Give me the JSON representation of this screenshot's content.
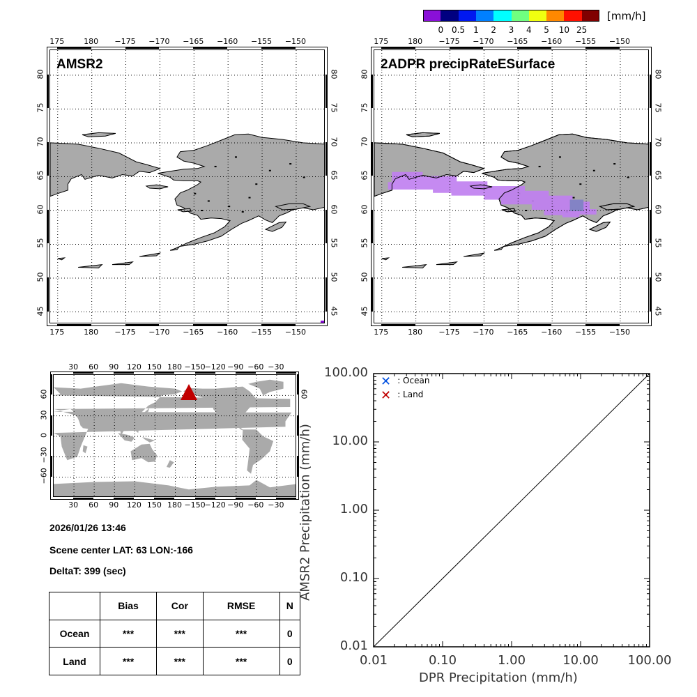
{
  "colorbar": {
    "unit": "[mm/h]",
    "colors": [
      "#8a10d8",
      "#000080",
      "#0018f0",
      "#0080ff",
      "#00ffff",
      "#70ff80",
      "#f0ff10",
      "#ff8800",
      "#ff1000",
      "#800000"
    ],
    "labels": [
      "0",
      "0.5",
      "1",
      "2",
      "3",
      "4",
      "5",
      "10",
      "25"
    ]
  },
  "map_panels": [
    {
      "title": "AMSR2",
      "lon_ticks": [
        "175",
        "180",
        "−175",
        "−170",
        "−165",
        "−160",
        "−155",
        "−150"
      ],
      "lat_ticks": [
        "80",
        "75",
        "70",
        "65",
        "60",
        "55",
        "50",
        "45"
      ]
    },
    {
      "title": "2ADPR precipRateESurface",
      "lon_ticks": [
        "175",
        "180",
        "−175",
        "−170",
        "−165",
        "−160",
        "−155",
        "−150"
      ],
      "lat_ticks": [
        "80",
        "75",
        "70",
        "65",
        "60",
        "55",
        "50",
        "45"
      ]
    }
  ],
  "precip_color": "#c080f0",
  "precip_color_dark": "#8080c8",
  "land_color": "#aaaaaa",
  "world_map": {
    "lon_ticks": [
      "30",
      "60",
      "90",
      "120",
      "150",
      "180",
      "−150",
      "−120",
      "−90",
      "−60",
      "−30"
    ],
    "lat_ticks_left": [
      "60",
      "30",
      "0",
      "−30",
      "−60"
    ],
    "lat_ticks_right": [
      "60"
    ],
    "marker_color": "#c00000"
  },
  "info": {
    "datetime": "2026/01/26 13:46",
    "scene_center": "Scene center LAT: 63   LON:-166",
    "delta_t": "DeltaT:  399 (sec)"
  },
  "stats_table": {
    "headers": [
      "",
      "Bias",
      "Cor",
      "RMSE",
      "N"
    ],
    "rows": [
      {
        "label": "Ocean",
        "bias": "***",
        "cor": "***",
        "rmse": "***",
        "n": "0"
      },
      {
        "label": "Land",
        "bias": "***",
        "cor": "***",
        "rmse": "***",
        "n": "0"
      }
    ]
  },
  "chart_data": {
    "type": "scatter",
    "title": "",
    "xlabel": "DPR Precipitation (mm/h)",
    "ylabel": "AMSR2 Precipitation (mm/h)",
    "xscale": "log",
    "yscale": "log",
    "xlim": [
      0.01,
      100
    ],
    "ylim": [
      0.01,
      100
    ],
    "x_tick_labels": [
      "0.01",
      "0.10",
      "1.00",
      "10.00",
      "100.00"
    ],
    "y_tick_labels": [
      "0.01",
      "0.10",
      "1.00",
      "10.00",
      "100.00"
    ],
    "x_ticks": [
      0.01,
      0.1,
      1,
      10,
      100
    ],
    "y_ticks": [
      0.01,
      0.1,
      1,
      10,
      100
    ],
    "legend": [
      {
        "name": ": Ocean",
        "color": "#0050e0",
        "marker": "x"
      },
      {
        "name": ": Land",
        "color": "#c00000",
        "marker": "x"
      }
    ],
    "legend_position": "top-left",
    "series": [
      {
        "name": "Ocean",
        "points": []
      },
      {
        "name": "Land",
        "points": []
      }
    ],
    "reference_line": {
      "from": [
        0.01,
        0.01
      ],
      "to": [
        100,
        100
      ]
    }
  }
}
